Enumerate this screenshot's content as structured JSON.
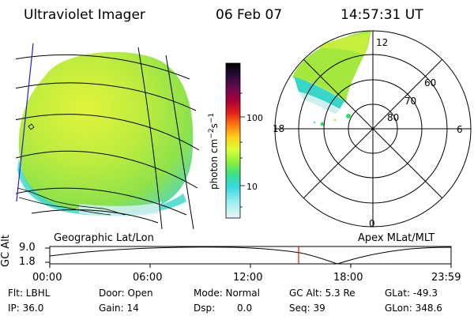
{
  "header": {
    "title": "Ultraviolet Imager",
    "date": "06 Feb 07",
    "time": "14:57:31 UT"
  },
  "colorbar": {
    "label": "photon cm-2s-1",
    "ticks": [
      "100",
      "10"
    ],
    "colors": [
      "#000000",
      "#2a0a3a",
      "#6a0a50",
      "#a8003a",
      "#e0201c",
      "#ff7a10",
      "#ffd21a",
      "#d8ff3a",
      "#8aef3c",
      "#3be08a",
      "#36d9e0",
      "#9fefef",
      "#d8f4f4"
    ]
  },
  "left_panel": {
    "label": "Geographic Lat/Lon"
  },
  "polar_panel": {
    "label": "Apex MLat/MLT",
    "mlt": {
      "top": "12",
      "left": "18",
      "right": "6",
      "bottom": "0"
    },
    "lat_rings": [
      "60",
      "70",
      "80"
    ]
  },
  "altitude_strip": {
    "axis_title": "GC Alt",
    "ymax": "9.0",
    "ymin": "1.8",
    "times": [
      "00:00",
      "06:00",
      "12:00",
      "18:00",
      "23:59"
    ],
    "marker_time": "14:57:31"
  },
  "info": {
    "flt": "Flt: LBHL",
    "door": "Door: Open",
    "mode": "Mode: Normal",
    "gcalt": "GC Alt: 5.3 Re",
    "glat": "GLat: -49.3",
    "ip": "IP: 36.0",
    "gain": "Gain: 14",
    "dsp_label": "Dsp:",
    "dsp_value": "0.0",
    "seq": "Seq: 39",
    "glon": "GLon: 348.6"
  }
}
